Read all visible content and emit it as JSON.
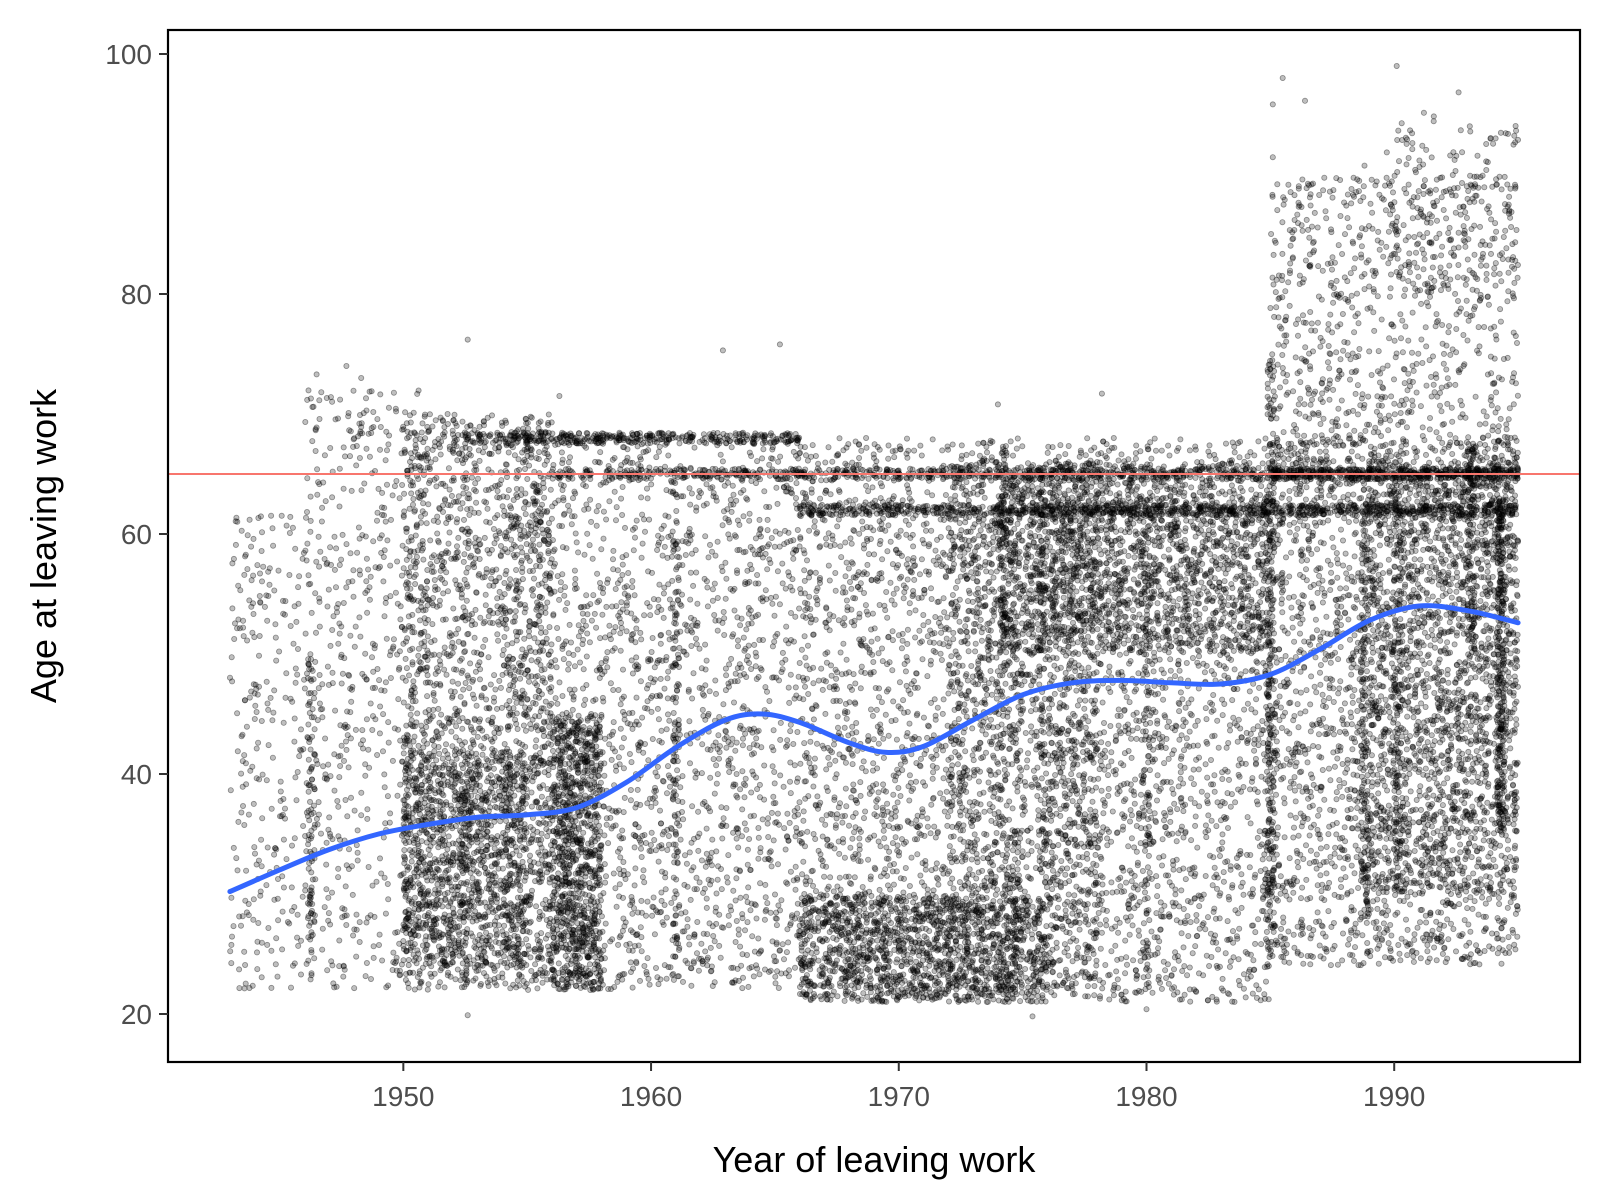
{
  "chart_data": {
    "type": "scatter",
    "title": "",
    "xlabel": "Year of leaving work",
    "ylabel": "Age at leaving work",
    "xlim": [
      1940.5,
      1997.5
    ],
    "ylim": [
      16,
      102
    ],
    "x_ticks": [
      1950,
      1960,
      1970,
      1980,
      1990
    ],
    "y_ticks": [
      20,
      40,
      60,
      80,
      100
    ],
    "grid": false,
    "legend": "none",
    "reference_line": {
      "y": 65,
      "color": "#f8766d"
    },
    "point_color": "#000000",
    "point_opacity": 0.25,
    "smooth_color": "#3366ff",
    "smooth_line": {
      "x": [
        1943,
        1945,
        1947,
        1949,
        1951,
        1953,
        1955,
        1957,
        1959,
        1961,
        1963,
        1964.5,
        1966,
        1968,
        1969.5,
        1971,
        1973,
        1975,
        1977,
        1979,
        1981,
        1983,
        1985,
        1987,
        1989,
        1991,
        1993,
        1995
      ],
      "y": [
        30.2,
        32.0,
        33.7,
        35.0,
        35.8,
        36.4,
        36.6,
        37.2,
        39.3,
        42.2,
        44.5,
        45.0,
        44.3,
        42.6,
        41.8,
        42.3,
        44.5,
        46.6,
        47.6,
        47.8,
        47.6,
        47.5,
        48.3,
        50.4,
        52.8,
        54.0,
        53.6,
        52.6
      ]
    },
    "point_clouds": [
      {
        "x": [
          1943,
          1946
        ],
        "y": [
          22,
          62
        ],
        "n": 250
      },
      {
        "x": [
          1946,
          1951
        ],
        "y": [
          22,
          72
        ],
        "n": 600
      },
      {
        "x": [
          1950,
          1956
        ],
        "y": [
          22,
          70
        ],
        "n": 1700
      },
      {
        "x": [
          1950,
          1955
        ],
        "y": [
          24,
          42
        ],
        "n": 900
      },
      {
        "x": [
          1956,
          1958
        ],
        "y": [
          22,
          45
        ],
        "n": 900
      },
      {
        "x": [
          1954,
          1966
        ],
        "y": [
          22,
          68
        ],
        "n": 2000
      },
      {
        "x": [
          1966,
          1975
        ],
        "y": [
          21,
          68
        ],
        "n": 1800
      },
      {
        "x": [
          1966,
          1976
        ],
        "y": [
          21,
          30
        ],
        "n": 1200
      },
      {
        "x": [
          1972,
          1978
        ],
        "y": [
          22,
          66
        ],
        "n": 1400
      },
      {
        "x": [
          1974,
          1985
        ],
        "y": [
          50,
          66
        ],
        "n": 1500
      },
      {
        "x": [
          1976,
          1985
        ],
        "y": [
          21,
          68
        ],
        "n": 1900
      },
      {
        "x": [
          1985,
          1995
        ],
        "y": [
          24,
          68
        ],
        "n": 2300
      },
      {
        "x": [
          1985,
          1995
        ],
        "y": [
          62,
          90
        ],
        "n": 1000
      },
      {
        "x": [
          1989,
          1995
        ],
        "y": [
          30,
          66
        ],
        "n": 1200
      },
      {
        "x": [
          1990,
          1995
        ],
        "y": [
          80,
          95
        ],
        "n": 160
      }
    ],
    "horizontal_bands": [
      {
        "y": 68,
        "x": [
          1952.5,
          1966
        ],
        "n": 380
      },
      {
        "y": 65,
        "x": [
          1956,
          1985
        ],
        "n": 520
      },
      {
        "y": 62,
        "x": [
          1966,
          1995
        ],
        "n": 850
      },
      {
        "y": 65,
        "x": [
          1985,
          1995
        ],
        "n": 450
      }
    ],
    "vertical_streaks": [
      {
        "x": 1946.3,
        "y": [
          24,
          50
        ],
        "n": 90
      },
      {
        "x": 1952.5,
        "y": [
          22,
          68
        ],
        "n": 60
      },
      {
        "x": 1961,
        "y": [
          24,
          66
        ],
        "n": 120
      },
      {
        "x": 1974.2,
        "y": [
          50,
          68
        ],
        "n": 60
      },
      {
        "x": 1975.8,
        "y": [
          30,
          65
        ],
        "n": 110
      },
      {
        "x": 1980,
        "y": [
          22,
          66
        ],
        "n": 110
      },
      {
        "x": 1985,
        "y": [
          24,
          75
        ],
        "n": 260
      },
      {
        "x": 1988.8,
        "y": [
          28,
          62
        ],
        "n": 170
      },
      {
        "x": 1990.1,
        "y": [
          30,
          66
        ],
        "n": 110
      },
      {
        "x": 1993.1,
        "y": [
          50,
          68
        ],
        "n": 100
      },
      {
        "x": 1994.3,
        "y": [
          35,
          63
        ],
        "n": 260
      }
    ],
    "outliers": [
      {
        "x": 1943.1,
        "y": 53.8
      },
      {
        "x": 1946.5,
        "y": 73.3
      },
      {
        "x": 1947.7,
        "y": 74.0
      },
      {
        "x": 1948.3,
        "y": 73.0
      },
      {
        "x": 1952.6,
        "y": 76.2
      },
      {
        "x": 1956.3,
        "y": 71.5
      },
      {
        "x": 1962.9,
        "y": 75.3
      },
      {
        "x": 1965.2,
        "y": 75.8
      },
      {
        "x": 1974,
        "y": 70.8
      },
      {
        "x": 1978.2,
        "y": 71.7
      },
      {
        "x": 1952.6,
        "y": 19.9
      },
      {
        "x": 1975.4,
        "y": 19.8
      },
      {
        "x": 1980,
        "y": 20.4
      },
      {
        "x": 1985.1,
        "y": 95.8
      },
      {
        "x": 1985.5,
        "y": 98.0
      },
      {
        "x": 1986.4,
        "y": 96.1
      },
      {
        "x": 1990.1,
        "y": 99.0
      },
      {
        "x": 1991.2,
        "y": 95.1
      },
      {
        "x": 1992.6,
        "y": 96.8
      },
      {
        "x": 1985.1,
        "y": 91.4
      },
      {
        "x": 1988.8,
        "y": 90.7
      },
      {
        "x": 1989.7,
        "y": 91.8
      },
      {
        "x": 1991.6,
        "y": 94.8
      },
      {
        "x": 1994.9,
        "y": 94.0
      },
      {
        "x": 1994.5,
        "y": 93.4
      }
    ]
  }
}
